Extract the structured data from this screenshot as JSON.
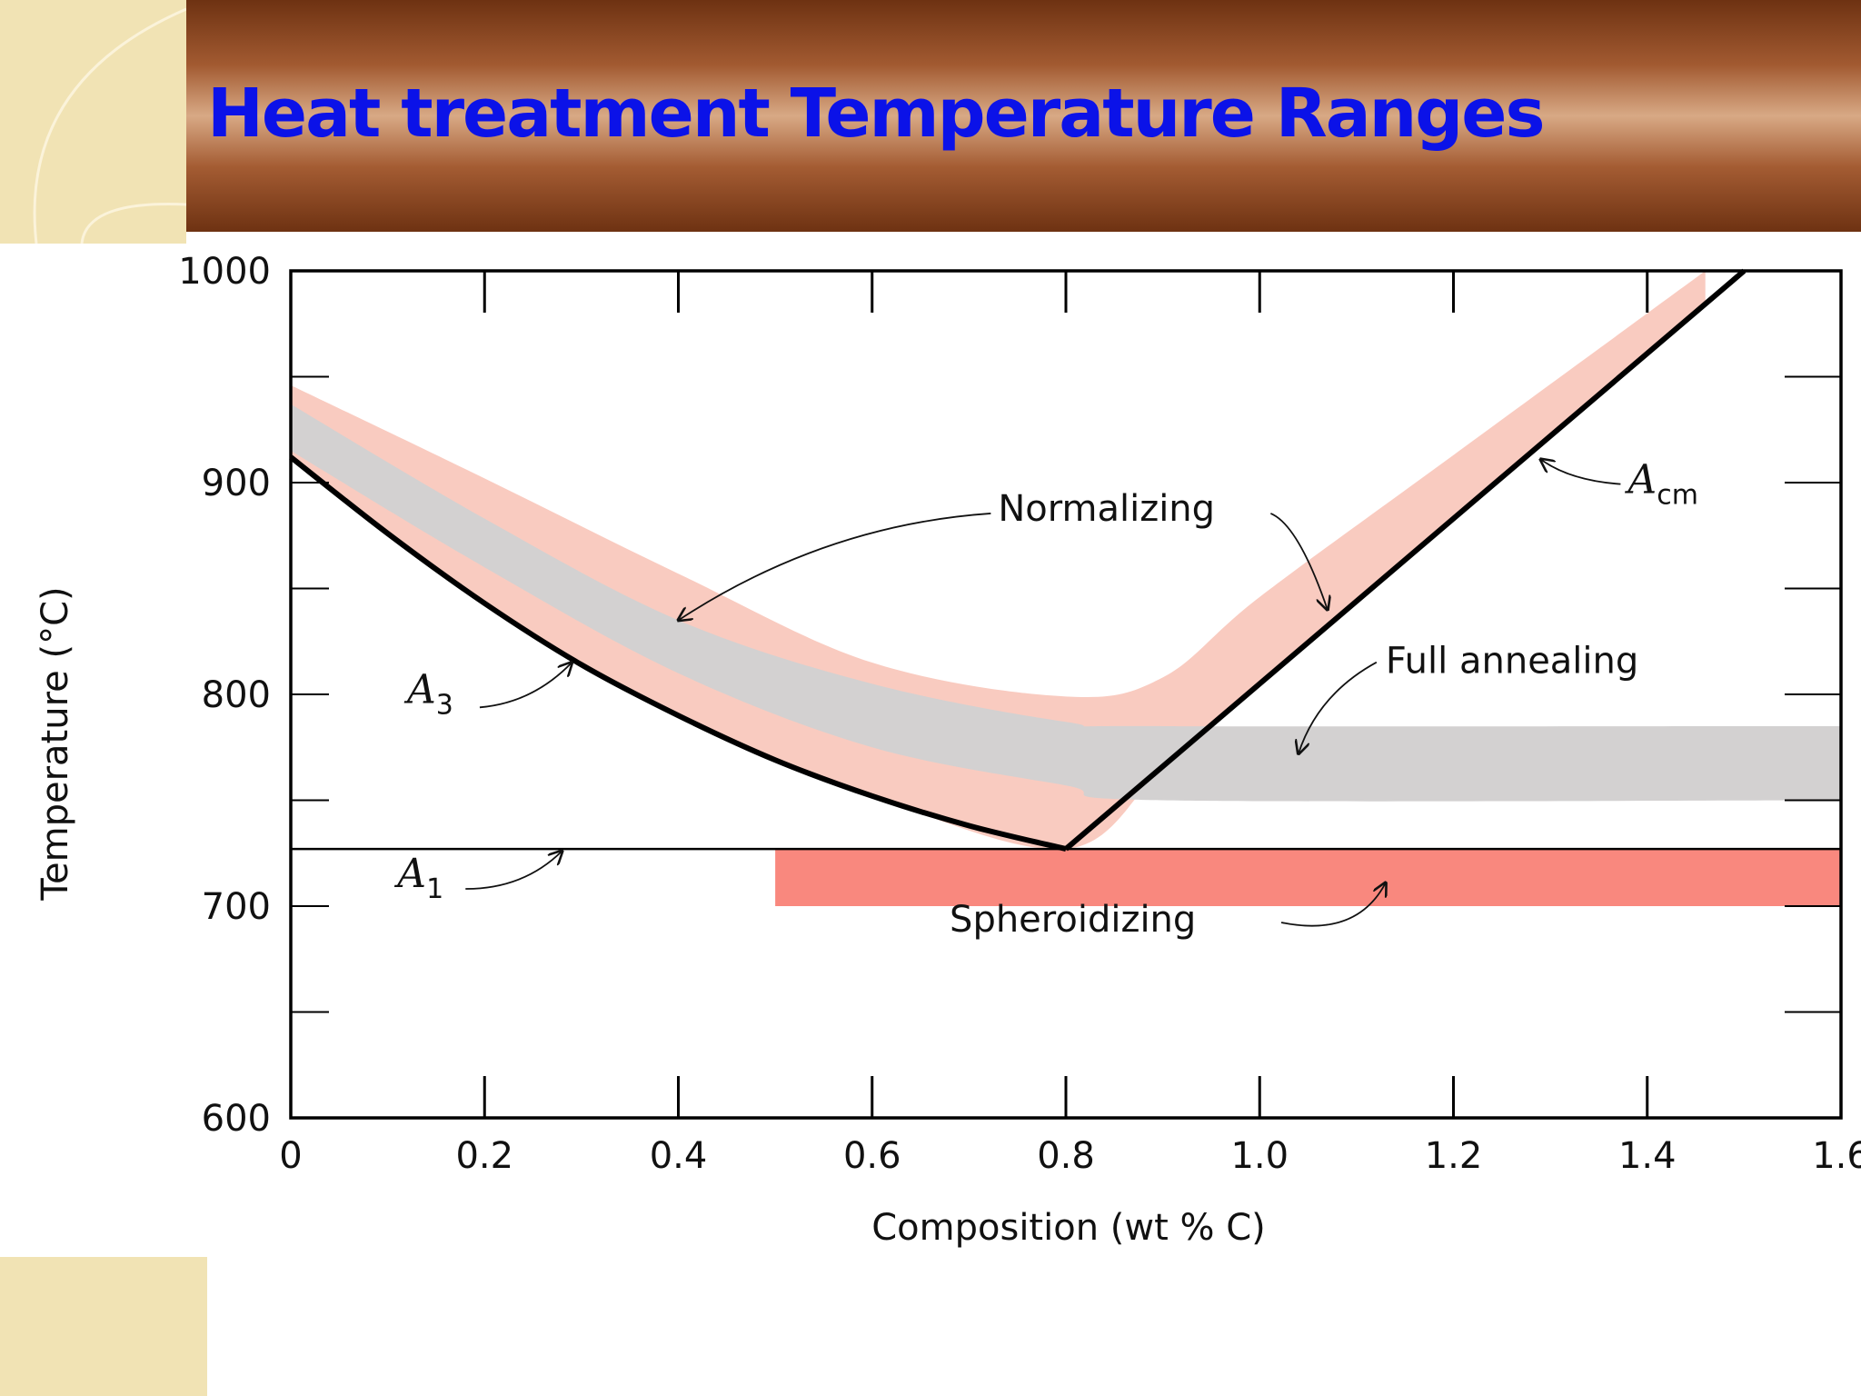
{
  "slide": {
    "title": "Heat treatment Temperature Ranges"
  },
  "chart_data": {
    "type": "area",
    "title": "",
    "xlabel": "Composition (wt % C)",
    "ylabel": "Temperature (°C)",
    "xlim": [
      0,
      1.6
    ],
    "ylim": [
      600,
      1000
    ],
    "xticks": [
      "0",
      "0.2",
      "0.4",
      "0.6",
      "0.8",
      "1.0",
      "1.2",
      "1.4",
      "1.6"
    ],
    "yticks": [
      "600",
      "700",
      "800",
      "900",
      "1000"
    ],
    "grid": false,
    "colors": {
      "normalizing": "#f9cbc0",
      "full_annealing": "#d3d1d1",
      "spheroidizing": "#f9887e",
      "phase_line": "#000000"
    },
    "phase_lines": {
      "A3": {
        "label": "A",
        "sub": "3",
        "x": [
          0,
          0.1,
          0.2,
          0.3,
          0.4,
          0.5,
          0.6,
          0.7,
          0.8
        ],
        "y": [
          912,
          876,
          843,
          814,
          790,
          769,
          752,
          738,
          727
        ]
      },
      "Acm": {
        "label": "A",
        "sub": "cm",
        "x": [
          0.8,
          1.5
        ],
        "y": [
          727,
          1000
        ]
      },
      "A1": {
        "label": "A",
        "sub": "1",
        "x": [
          0,
          1.6
        ],
        "y": [
          727,
          727
        ]
      }
    },
    "regions": [
      {
        "name": "Normalizing",
        "x": [
          0,
          0.2,
          0.4,
          0.6,
          0.8,
          0.9,
          1.0,
          1.2,
          1.46
        ],
        "y_low": [
          912,
          843,
          790,
          752,
          727,
          765,
          804,
          882,
          983
        ],
        "y_high": [
          946,
          902,
          857,
          815,
          799,
          808,
          846,
          913,
          1000
        ]
      },
      {
        "name": "Full annealing",
        "x": [
          0,
          0.2,
          0.4,
          0.6,
          0.8,
          0.9,
          1.6
        ],
        "y_low": [
          915,
          860,
          810,
          775,
          757,
          750,
          750
        ],
        "y_high": [
          937,
          883,
          835,
          805,
          787,
          785,
          785
        ]
      },
      {
        "name": "Spheroidizing",
        "x": [
          0.5,
          1.6
        ],
        "y_low": [
          700,
          700
        ],
        "y_high": [
          727,
          727
        ]
      }
    ],
    "annotations": [
      {
        "text": "Normalizing",
        "x": 0.73,
        "y": 882
      },
      {
        "text": "Full annealing",
        "x": 1.13,
        "y": 810
      },
      {
        "text": "Spheroidizing",
        "x": 0.68,
        "y": 688
      }
    ]
  }
}
